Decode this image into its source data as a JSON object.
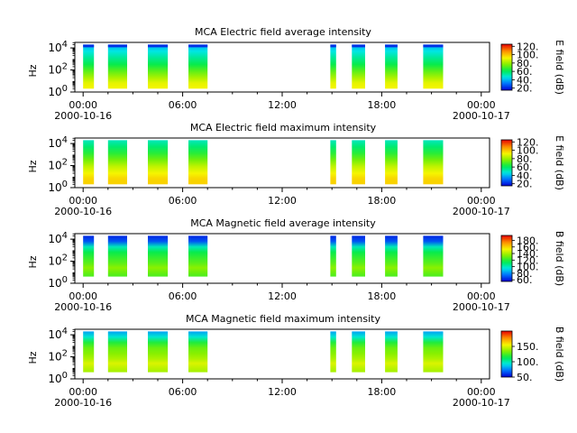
{
  "figure": {
    "x_ticks": [
      "00:00",
      "06:00",
      "12:00",
      "18:00",
      "00:00"
    ],
    "date_start": "2000-10-16",
    "date_end": "2000-10-17",
    "colormap": "rainbow"
  },
  "chart_data": [
    {
      "type": "heatmap",
      "title": "MCA  Electric field average intensity",
      "ylabel": "Hz",
      "y_ticks": [
        "10",
        "10",
        "10"
      ],
      "y_exps": [
        "4",
        "2",
        "0"
      ],
      "ylim_log10": [
        0,
        4.5
      ],
      "xlim_hours": [
        -0.5,
        24.5
      ],
      "colorbar_label": "E field (dB)",
      "colorbar_range": [
        15,
        125
      ],
      "colorbar_ticks": [
        "120.",
        "100.",
        "80.",
        "60.",
        "40.",
        "20."
      ],
      "colorbar_tick_values": [
        120,
        100,
        80,
        60,
        40,
        20
      ],
      "data_ylim_log10": [
        0.3,
        4.3
      ],
      "profile": [
        [
          0.3,
          92
        ],
        [
          0.8,
          90
        ],
        [
          1.3,
          82
        ],
        [
          1.9,
          72
        ],
        [
          2.5,
          62
        ],
        [
          3.1,
          54
        ],
        [
          3.7,
          46
        ],
        [
          4.3,
          38
        ]
      ],
      "top_band_value": 22,
      "bursts_hours": [
        [
          0,
          0.65
        ],
        [
          1.5,
          2.65
        ],
        [
          3.9,
          5.1
        ],
        [
          6.35,
          7.5
        ],
        [
          14.9,
          15.25
        ],
        [
          16.2,
          17.0
        ],
        [
          18.2,
          18.95
        ],
        [
          20.5,
          21.7
        ]
      ]
    },
    {
      "type": "heatmap",
      "title": "MCA  Electric field maximum intensity",
      "ylabel": "Hz",
      "y_ticks": [
        "10",
        "10",
        "10"
      ],
      "y_exps": [
        "4",
        "2",
        "0"
      ],
      "ylim_log10": [
        0,
        4.5
      ],
      "xlim_hours": [
        -0.5,
        24.5
      ],
      "colorbar_label": "E field (dB)",
      "colorbar_range": [
        15,
        125
      ],
      "colorbar_ticks": [
        "120.",
        "100.",
        "80.",
        "60.",
        "40.",
        "20."
      ],
      "colorbar_tick_values": [
        120,
        100,
        80,
        60,
        40,
        20
      ],
      "data_ylim_log10": [
        0.3,
        4.3
      ],
      "profile": [
        [
          0.3,
          98
        ],
        [
          0.8,
          97
        ],
        [
          1.3,
          92
        ],
        [
          1.9,
          85
        ],
        [
          2.5,
          75
        ],
        [
          3.1,
          66
        ],
        [
          3.7,
          58
        ],
        [
          4.3,
          50
        ]
      ],
      "top_band_value": 0,
      "bursts_hours": [
        [
          0,
          0.65
        ],
        [
          1.5,
          2.65
        ],
        [
          3.9,
          5.1
        ],
        [
          6.35,
          7.5
        ],
        [
          14.9,
          15.25
        ],
        [
          16.2,
          17.0
        ],
        [
          18.2,
          18.95
        ],
        [
          20.5,
          21.7
        ]
      ]
    },
    {
      "type": "heatmap",
      "title": "MCA  Magnetic field average intensity",
      "ylabel": "Hz",
      "y_ticks": [
        "10",
        "10",
        "10"
      ],
      "y_exps": [
        "4",
        "2",
        "0"
      ],
      "ylim_log10": [
        0,
        4.5
      ],
      "xlim_hours": [
        -0.5,
        24.5
      ],
      "colorbar_label": "B field (dB)",
      "colorbar_range": [
        55,
        195
      ],
      "colorbar_ticks": [
        "180.",
        "160.",
        "140.",
        "120.",
        "100.",
        "80.",
        "60."
      ],
      "colorbar_tick_values": [
        180,
        160,
        140,
        120,
        100,
        80,
        60
      ],
      "data_ylim_log10": [
        0.6,
        4.3
      ],
      "profile": [
        [
          0.6,
          125
        ],
        [
          1.0,
          130
        ],
        [
          1.4,
          135
        ],
        [
          1.8,
          128
        ],
        [
          2.3,
          122
        ],
        [
          2.8,
          115
        ],
        [
          3.3,
          100
        ],
        [
          3.8,
          70
        ],
        [
          4.3,
          62
        ]
      ],
      "top_band_value": 0,
      "bursts_hours": [
        [
          0,
          0.65
        ],
        [
          1.5,
          2.65
        ],
        [
          3.9,
          5.1
        ],
        [
          6.35,
          7.5
        ],
        [
          14.9,
          15.25
        ],
        [
          16.2,
          17.0
        ],
        [
          18.2,
          18.95
        ],
        [
          20.5,
          21.7
        ]
      ]
    },
    {
      "type": "heatmap",
      "title": "MCA  Magnetic field maximum intensity",
      "ylabel": "Hz",
      "y_ticks": [
        "10",
        "10",
        "10"
      ],
      "y_exps": [
        "4",
        "2",
        "0"
      ],
      "ylim_log10": [
        0,
        4.5
      ],
      "xlim_hours": [
        -0.5,
        24.5
      ],
      "colorbar_label": "B field (dB)",
      "colorbar_range": [
        50,
        200
      ],
      "colorbar_ticks": [
        "150.",
        "100.",
        "50."
      ],
      "colorbar_tick_values": [
        150,
        100,
        50
      ],
      "data_ylim_log10": [
        0.6,
        4.3
      ],
      "profile": [
        [
          0.6,
          140
        ],
        [
          1.0,
          145
        ],
        [
          1.4,
          150
        ],
        [
          1.8,
          142
        ],
        [
          2.3,
          135
        ],
        [
          2.8,
          130
        ],
        [
          3.3,
          118
        ],
        [
          3.8,
          95
        ],
        [
          4.3,
          80
        ]
      ],
      "top_band_value": 0,
      "bursts_hours": [
        [
          0,
          0.65
        ],
        [
          1.5,
          2.65
        ],
        [
          3.9,
          5.1
        ],
        [
          6.35,
          7.5
        ],
        [
          14.9,
          15.25
        ],
        [
          16.2,
          17.0
        ],
        [
          18.2,
          18.95
        ],
        [
          20.5,
          21.7
        ]
      ]
    }
  ]
}
